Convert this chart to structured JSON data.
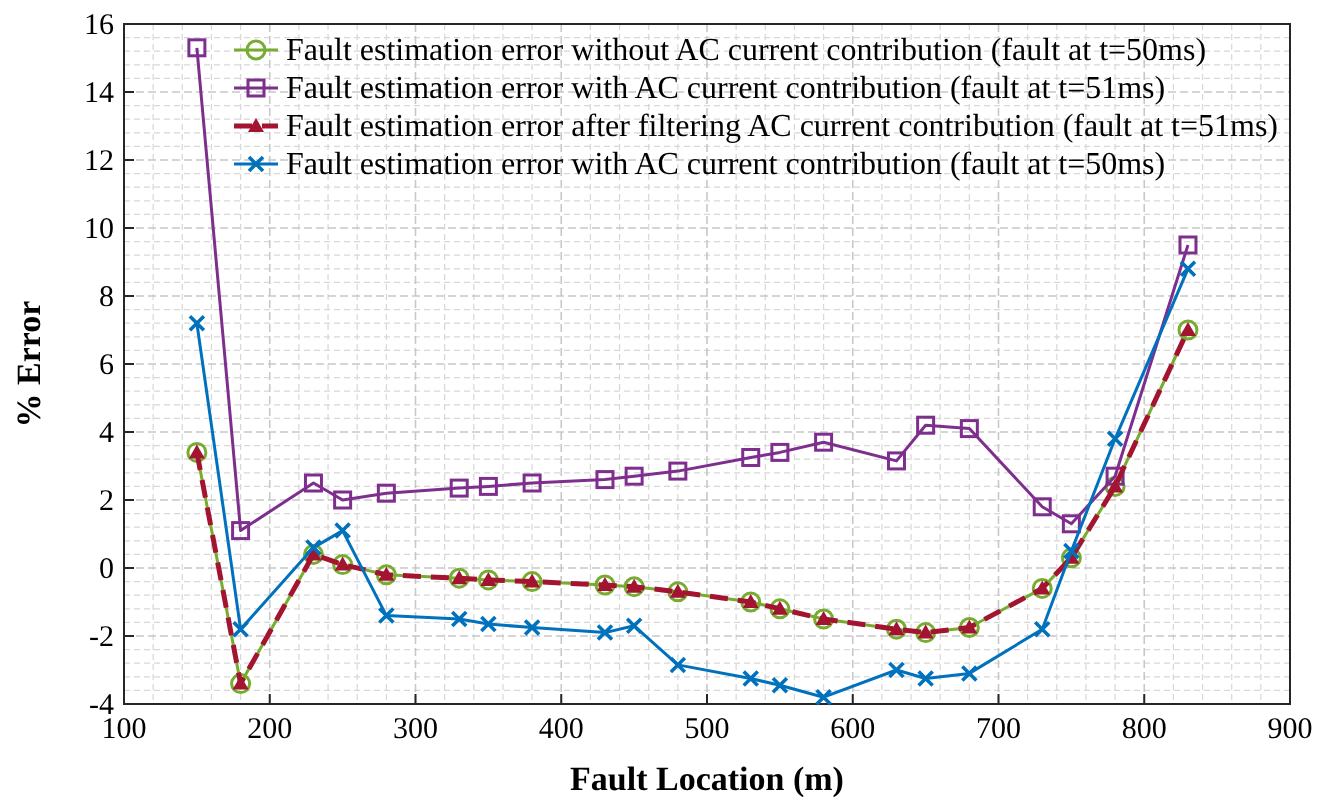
{
  "chart_data": {
    "type": "line",
    "xlabel": "Fault Location (m)",
    "ylabel": "% Error",
    "x": [
      150,
      180,
      230,
      250,
      280,
      330,
      350,
      380,
      430,
      450,
      480,
      530,
      550,
      580,
      630,
      650,
      680,
      730,
      750,
      780,
      830
    ],
    "series": [
      {
        "name": "Fault estimation error without AC current contribution (fault at t=50ms)",
        "color": "#77ac30",
        "marker": "circle",
        "line_style": "solid",
        "values": [
          3.4,
          -3.4,
          0.4,
          0.1,
          -0.2,
          -0.3,
          -0.35,
          -0.4,
          -0.5,
          -0.55,
          -0.7,
          -1.0,
          -1.2,
          -1.5,
          -1.8,
          -1.9,
          -1.75,
          -0.6,
          0.3,
          2.4,
          7.0
        ]
      },
      {
        "name": "Fault estimation error with AC current contribution (fault at t=51ms)",
        "color": "#7e2f8e",
        "marker": "square",
        "line_style": "solid",
        "values": [
          15.3,
          1.1,
          2.5,
          2.0,
          2.2,
          2.35,
          2.4,
          2.5,
          2.6,
          2.7,
          2.85,
          3.25,
          3.4,
          3.7,
          3.15,
          4.2,
          4.1,
          1.8,
          1.3,
          2.7,
          9.5
        ]
      },
      {
        "name": "Fault estimation error after filtering AC current contribution (fault at t=51ms)",
        "color": "#a2142f",
        "marker": "triangle",
        "line_style": "dashed",
        "values": [
          3.4,
          -3.4,
          0.4,
          0.1,
          -0.2,
          -0.3,
          -0.35,
          -0.4,
          -0.5,
          -0.55,
          -0.7,
          -1.0,
          -1.2,
          -1.5,
          -1.8,
          -1.9,
          -1.75,
          -0.6,
          0.3,
          2.4,
          7.0
        ]
      },
      {
        "name": "Fault estimation error with AC current contribution (fault at t=50ms)",
        "color": "#0072bd",
        "marker": "cross",
        "line_style": "solid",
        "values": [
          7.2,
          -1.8,
          0.6,
          1.1,
          -1.4,
          -1.5,
          -1.65,
          -1.75,
          -1.9,
          -1.7,
          -2.85,
          -3.25,
          -3.45,
          -3.8,
          -3.0,
          -3.25,
          -3.1,
          -1.8,
          0.5,
          3.8,
          8.8
        ]
      }
    ],
    "xlim": [
      100,
      900
    ],
    "xticks": [
      100,
      200,
      300,
      400,
      500,
      600,
      700,
      800,
      900
    ],
    "ylim": [
      -4,
      16
    ],
    "yticks": [
      -4,
      -2,
      0,
      2,
      4,
      6,
      8,
      10,
      12,
      14,
      16
    ],
    "grid": true,
    "legend": "top right"
  }
}
